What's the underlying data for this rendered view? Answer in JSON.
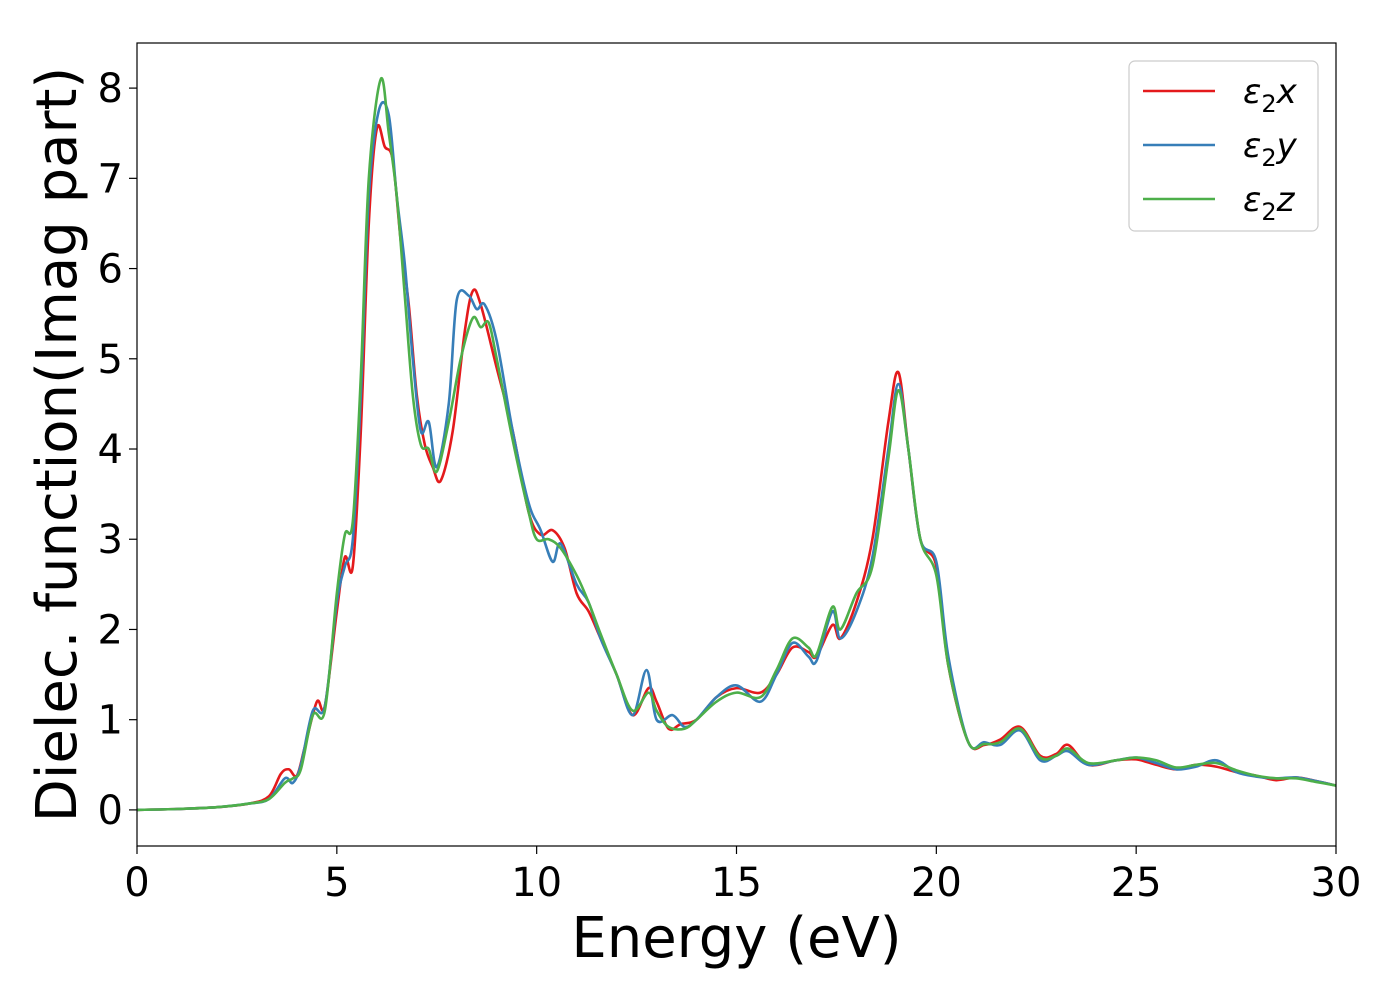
{
  "chart_data": {
    "type": "line",
    "title": "",
    "xlabel": "Energy (eV)",
    "ylabel": "Dielec. function(Imag part)",
    "xlim": [
      0,
      30
    ],
    "ylim": [
      -0.4,
      8.5
    ],
    "xticks": [
      0,
      5,
      10,
      15,
      20,
      25,
      30
    ],
    "yticks": [
      0,
      1,
      2,
      3,
      4,
      5,
      6,
      7,
      8
    ],
    "grid": false,
    "legend_position": "top-right",
    "series": [
      {
        "name": "ε2x",
        "legend_base": "ε",
        "legend_sub": "2",
        "legend_var": "x",
        "color": "#e41a1c",
        "points": [
          [
            0,
            0
          ],
          [
            1,
            0.01
          ],
          [
            2,
            0.03
          ],
          [
            2.8,
            0.07
          ],
          [
            3.3,
            0.15
          ],
          [
            3.6,
            0.4
          ],
          [
            3.8,
            0.45
          ],
          [
            4.0,
            0.38
          ],
          [
            4.2,
            0.7
          ],
          [
            4.5,
            1.2
          ],
          [
            4.7,
            1.15
          ],
          [
            5.0,
            2.2
          ],
          [
            5.2,
            2.8
          ],
          [
            5.4,
            2.7
          ],
          [
            5.6,
            4.2
          ],
          [
            5.8,
            6.5
          ],
          [
            6.0,
            7.55
          ],
          [
            6.2,
            7.35
          ],
          [
            6.4,
            7.2
          ],
          [
            6.6,
            6.3
          ],
          [
            6.8,
            5.6
          ],
          [
            7.0,
            4.6
          ],
          [
            7.2,
            4.05
          ],
          [
            7.4,
            3.8
          ],
          [
            7.6,
            3.65
          ],
          [
            7.9,
            4.2
          ],
          [
            8.2,
            5.3
          ],
          [
            8.4,
            5.75
          ],
          [
            8.6,
            5.6
          ],
          [
            9.0,
            4.9
          ],
          [
            9.4,
            4.2
          ],
          [
            9.8,
            3.3
          ],
          [
            10.1,
            3.05
          ],
          [
            10.4,
            3.1
          ],
          [
            10.7,
            2.9
          ],
          [
            11.0,
            2.4
          ],
          [
            11.3,
            2.2
          ],
          [
            11.6,
            1.9
          ],
          [
            12.0,
            1.5
          ],
          [
            12.4,
            1.05
          ],
          [
            12.8,
            1.35
          ],
          [
            13.0,
            1.2
          ],
          [
            13.3,
            0.9
          ],
          [
            13.6,
            0.95
          ],
          [
            14.0,
            1.0
          ],
          [
            14.5,
            1.25
          ],
          [
            15.0,
            1.35
          ],
          [
            15.6,
            1.3
          ],
          [
            16.0,
            1.5
          ],
          [
            16.4,
            1.8
          ],
          [
            16.8,
            1.75
          ],
          [
            17.0,
            1.7
          ],
          [
            17.4,
            2.05
          ],
          [
            17.6,
            1.9
          ],
          [
            18.0,
            2.3
          ],
          [
            18.4,
            3.0
          ],
          [
            18.8,
            4.3
          ],
          [
            19.05,
            4.85
          ],
          [
            19.3,
            4.0
          ],
          [
            19.6,
            3.0
          ],
          [
            20.0,
            2.7
          ],
          [
            20.3,
            1.6
          ],
          [
            20.8,
            0.75
          ],
          [
            21.2,
            0.72
          ],
          [
            21.6,
            0.78
          ],
          [
            22.1,
            0.92
          ],
          [
            22.6,
            0.6
          ],
          [
            23.0,
            0.62
          ],
          [
            23.3,
            0.72
          ],
          [
            23.8,
            0.5
          ],
          [
            24.5,
            0.55
          ],
          [
            25.0,
            0.56
          ],
          [
            25.5,
            0.5
          ],
          [
            26.0,
            0.45
          ],
          [
            26.5,
            0.5
          ],
          [
            27.0,
            0.48
          ],
          [
            27.5,
            0.42
          ],
          [
            28.0,
            0.38
          ],
          [
            28.5,
            0.33
          ],
          [
            29.0,
            0.36
          ],
          [
            29.5,
            0.32
          ],
          [
            30.0,
            0.27
          ]
        ]
      },
      {
        "name": "ε2y",
        "legend_base": "ε",
        "legend_sub": "2",
        "legend_var": "y",
        "color": "#377eb8",
        "points": [
          [
            0,
            0
          ],
          [
            1,
            0.01
          ],
          [
            2,
            0.03
          ],
          [
            2.8,
            0.07
          ],
          [
            3.3,
            0.12
          ],
          [
            3.7,
            0.35
          ],
          [
            3.9,
            0.3
          ],
          [
            4.1,
            0.5
          ],
          [
            4.4,
            1.1
          ],
          [
            4.7,
            1.15
          ],
          [
            5.0,
            2.3
          ],
          [
            5.2,
            2.7
          ],
          [
            5.4,
            3.0
          ],
          [
            5.6,
            4.6
          ],
          [
            5.8,
            6.8
          ],
          [
            6.05,
            7.75
          ],
          [
            6.3,
            7.7
          ],
          [
            6.5,
            6.8
          ],
          [
            6.7,
            6.05
          ],
          [
            6.9,
            5.0
          ],
          [
            7.1,
            4.2
          ],
          [
            7.3,
            4.3
          ],
          [
            7.5,
            3.8
          ],
          [
            7.8,
            4.5
          ],
          [
            8.0,
            5.65
          ],
          [
            8.3,
            5.7
          ],
          [
            8.5,
            5.55
          ],
          [
            8.7,
            5.6
          ],
          [
            9.0,
            5.2
          ],
          [
            9.4,
            4.2
          ],
          [
            9.8,
            3.4
          ],
          [
            10.1,
            3.1
          ],
          [
            10.4,
            2.75
          ],
          [
            10.6,
            2.95
          ],
          [
            11.0,
            2.5
          ],
          [
            11.3,
            2.3
          ],
          [
            11.6,
            1.9
          ],
          [
            12.0,
            1.5
          ],
          [
            12.4,
            1.05
          ],
          [
            12.75,
            1.55
          ],
          [
            13.0,
            1.0
          ],
          [
            13.4,
            1.05
          ],
          [
            13.7,
            0.92
          ],
          [
            14.0,
            1.0
          ],
          [
            14.5,
            1.25
          ],
          [
            15.0,
            1.38
          ],
          [
            15.6,
            1.2
          ],
          [
            16.0,
            1.5
          ],
          [
            16.4,
            1.85
          ],
          [
            16.8,
            1.7
          ],
          [
            17.0,
            1.65
          ],
          [
            17.4,
            2.2
          ],
          [
            17.6,
            1.9
          ],
          [
            18.0,
            2.2
          ],
          [
            18.4,
            2.8
          ],
          [
            18.8,
            4.0
          ],
          [
            19.05,
            4.72
          ],
          [
            19.3,
            4.0
          ],
          [
            19.6,
            3.0
          ],
          [
            20.0,
            2.75
          ],
          [
            20.3,
            1.7
          ],
          [
            20.8,
            0.75
          ],
          [
            21.2,
            0.75
          ],
          [
            21.6,
            0.72
          ],
          [
            22.1,
            0.88
          ],
          [
            22.6,
            0.55
          ],
          [
            23.0,
            0.6
          ],
          [
            23.3,
            0.65
          ],
          [
            23.8,
            0.5
          ],
          [
            24.5,
            0.55
          ],
          [
            25.0,
            0.58
          ],
          [
            25.5,
            0.52
          ],
          [
            26.0,
            0.45
          ],
          [
            26.5,
            0.48
          ],
          [
            27.0,
            0.55
          ],
          [
            27.5,
            0.42
          ],
          [
            28.0,
            0.37
          ],
          [
            28.5,
            0.35
          ],
          [
            29.0,
            0.36
          ],
          [
            29.5,
            0.32
          ],
          [
            30.0,
            0.27
          ]
        ]
      },
      {
        "name": "ε2z",
        "legend_base": "ε",
        "legend_sub": "2",
        "legend_var": "z",
        "color": "#4daf4a",
        "points": [
          [
            0,
            0
          ],
          [
            1,
            0.01
          ],
          [
            2,
            0.03
          ],
          [
            2.8,
            0.07
          ],
          [
            3.3,
            0.12
          ],
          [
            3.7,
            0.3
          ],
          [
            3.9,
            0.35
          ],
          [
            4.1,
            0.45
          ],
          [
            4.4,
            1.05
          ],
          [
            4.7,
            1.1
          ],
          [
            5.0,
            2.4
          ],
          [
            5.2,
            3.05
          ],
          [
            5.4,
            3.2
          ],
          [
            5.6,
            4.8
          ],
          [
            5.8,
            7.0
          ],
          [
            6.1,
            8.1
          ],
          [
            6.3,
            7.5
          ],
          [
            6.5,
            6.8
          ],
          [
            6.7,
            5.7
          ],
          [
            6.9,
            4.6
          ],
          [
            7.1,
            4.05
          ],
          [
            7.3,
            4.0
          ],
          [
            7.5,
            3.75
          ],
          [
            7.8,
            4.3
          ],
          [
            8.1,
            5.0
          ],
          [
            8.4,
            5.45
          ],
          [
            8.6,
            5.35
          ],
          [
            8.8,
            5.4
          ],
          [
            9.0,
            5.0
          ],
          [
            9.4,
            4.1
          ],
          [
            9.8,
            3.3
          ],
          [
            10.0,
            3.0
          ],
          [
            10.3,
            3.0
          ],
          [
            10.6,
            2.9
          ],
          [
            11.0,
            2.6
          ],
          [
            11.3,
            2.3
          ],
          [
            11.6,
            1.95
          ],
          [
            12.0,
            1.5
          ],
          [
            12.4,
            1.1
          ],
          [
            12.8,
            1.3
          ],
          [
            13.0,
            1.1
          ],
          [
            13.3,
            0.92
          ],
          [
            13.7,
            0.9
          ],
          [
            14.0,
            1.0
          ],
          [
            14.5,
            1.2
          ],
          [
            15.0,
            1.3
          ],
          [
            15.6,
            1.25
          ],
          [
            16.0,
            1.55
          ],
          [
            16.4,
            1.9
          ],
          [
            16.8,
            1.8
          ],
          [
            17.0,
            1.72
          ],
          [
            17.4,
            2.25
          ],
          [
            17.6,
            2.0
          ],
          [
            18.0,
            2.4
          ],
          [
            18.4,
            2.7
          ],
          [
            18.8,
            3.9
          ],
          [
            19.05,
            4.65
          ],
          [
            19.3,
            4.0
          ],
          [
            19.6,
            3.0
          ],
          [
            20.0,
            2.6
          ],
          [
            20.3,
            1.6
          ],
          [
            20.8,
            0.75
          ],
          [
            21.2,
            0.73
          ],
          [
            21.6,
            0.75
          ],
          [
            22.1,
            0.9
          ],
          [
            22.6,
            0.58
          ],
          [
            23.0,
            0.6
          ],
          [
            23.3,
            0.68
          ],
          [
            23.8,
            0.52
          ],
          [
            24.5,
            0.55
          ],
          [
            25.0,
            0.58
          ],
          [
            25.5,
            0.55
          ],
          [
            26.0,
            0.47
          ],
          [
            26.5,
            0.5
          ],
          [
            27.0,
            0.52
          ],
          [
            27.5,
            0.44
          ],
          [
            28.0,
            0.38
          ],
          [
            28.5,
            0.35
          ],
          [
            29.0,
            0.35
          ],
          [
            29.5,
            0.31
          ],
          [
            30.0,
            0.27
          ]
        ]
      }
    ]
  }
}
